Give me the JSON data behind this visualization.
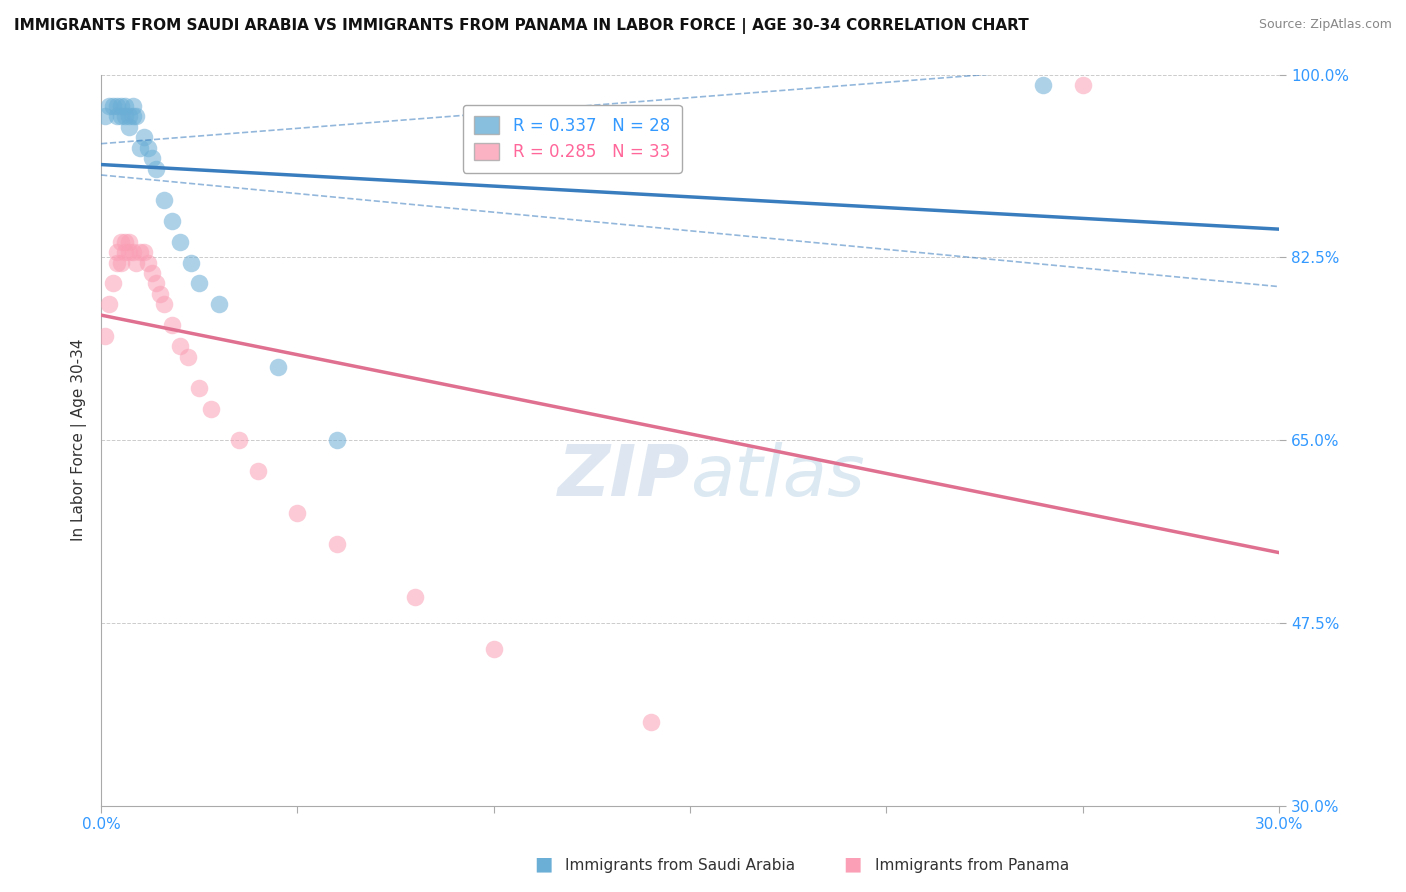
{
  "title": "IMMIGRANTS FROM SAUDI ARABIA VS IMMIGRANTS FROM PANAMA IN LABOR FORCE | AGE 30-34 CORRELATION CHART",
  "source": "Source: ZipAtlas.com",
  "ylabel": "In Labor Force | Age 30-34",
  "xlim": [
    0.0,
    0.3
  ],
  "ylim": [
    0.3,
    1.0
  ],
  "xtick_positions": [
    0.0,
    0.05,
    0.1,
    0.15,
    0.2,
    0.25,
    0.3
  ],
  "xtick_labels": [
    "0.0%",
    "",
    "",
    "",
    "",
    "",
    "30.0%"
  ],
  "ytick_positions": [
    0.3,
    0.475,
    0.65,
    0.825,
    1.0
  ],
  "ytick_labels": [
    "30.0%",
    "47.5%",
    "65.0%",
    "82.5%",
    "100.0%"
  ],
  "grid_color": "#cccccc",
  "background_color": "#ffffff",
  "color_blue": "#6baed6",
  "color_pink": "#fa9fb5",
  "trend_blue": "#3a7dbf",
  "trend_pink": "#e07090",
  "legend_text1": "R = 0.337   N = 28",
  "legend_text2": "R = 0.285   N = 33",
  "legend_color1": "#3399ff",
  "legend_color2": "#ff6699",
  "saudi_x": [
    0.001,
    0.002,
    0.003,
    0.004,
    0.004,
    0.005,
    0.005,
    0.006,
    0.006,
    0.007,
    0.007,
    0.008,
    0.008,
    0.009,
    0.01,
    0.011,
    0.012,
    0.013,
    0.014,
    0.016,
    0.018,
    0.02,
    0.023,
    0.025,
    0.03,
    0.045,
    0.06,
    0.24
  ],
  "saudi_y": [
    0.96,
    0.97,
    0.97,
    0.96,
    0.97,
    0.96,
    0.97,
    0.96,
    0.97,
    0.95,
    0.96,
    0.96,
    0.97,
    0.96,
    0.93,
    0.94,
    0.93,
    0.92,
    0.91,
    0.88,
    0.86,
    0.84,
    0.82,
    0.8,
    0.78,
    0.72,
    0.65,
    0.99
  ],
  "panama_x": [
    0.001,
    0.002,
    0.003,
    0.004,
    0.004,
    0.005,
    0.005,
    0.006,
    0.006,
    0.007,
    0.007,
    0.008,
    0.009,
    0.01,
    0.011,
    0.012,
    0.013,
    0.014,
    0.015,
    0.016,
    0.018,
    0.02,
    0.022,
    0.025,
    0.028,
    0.035,
    0.04,
    0.05,
    0.06,
    0.08,
    0.1,
    0.14,
    0.25
  ],
  "panama_y": [
    0.75,
    0.78,
    0.8,
    0.82,
    0.83,
    0.82,
    0.84,
    0.83,
    0.84,
    0.83,
    0.84,
    0.83,
    0.82,
    0.83,
    0.83,
    0.82,
    0.81,
    0.8,
    0.79,
    0.78,
    0.76,
    0.74,
    0.73,
    0.7,
    0.68,
    0.65,
    0.62,
    0.58,
    0.55,
    0.5,
    0.45,
    0.38,
    0.99
  ]
}
